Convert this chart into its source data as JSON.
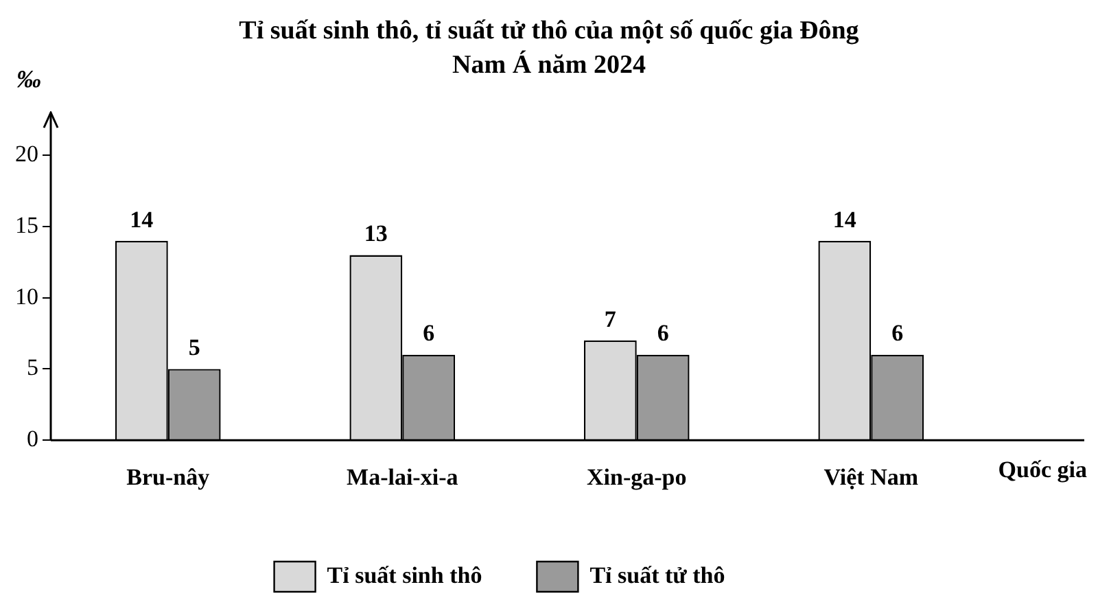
{
  "chart_data": {
    "type": "bar",
    "title": "Tỉ suất sinh thô, tỉ suất tử thô của một số quốc gia Đông Nam Á năm 2024",
    "xlabel": "Quốc gia",
    "ylabel": "‰",
    "categories": [
      "Bru-nây",
      "Ma-lai-xi-a",
      "Xin-ga-po",
      "Việt Nam"
    ],
    "series": [
      {
        "name": "Tỉ suất sinh thô",
        "color": "#d9d9d9",
        "values": [
          14,
          13,
          7,
          14
        ]
      },
      {
        "name": "Tỉ suất tử thô",
        "color": "#9a9a9a",
        "values": [
          5,
          6,
          6,
          6
        ]
      }
    ],
    "ylim": [
      0,
      23
    ],
    "yticks": [
      0,
      5,
      10,
      15,
      20
    ],
    "grid": false,
    "legend": "bottom",
    "data_labels": true
  }
}
